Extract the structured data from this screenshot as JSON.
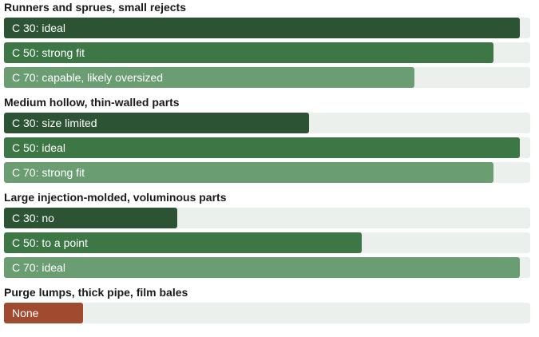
{
  "chart_data": {
    "type": "bar",
    "orientation": "horizontal",
    "scale_max": 100,
    "colors": {
      "track": "#ebf0ed",
      "C 30": "#2c5434",
      "C 50": "#3c7745",
      "C 70": "#6a9e72",
      "none": "#a04a30",
      "title": "#1a1a1a",
      "label": "#ffffff"
    },
    "groups": [
      {
        "title": "Runners and sprues, small rejects",
        "bars": [
          {
            "series": "C 30",
            "label": "C 30: ideal",
            "value": 98
          },
          {
            "series": "C 50",
            "label": "C 50: strong fit",
            "value": 93
          },
          {
            "series": "C 70",
            "label": "C 70: capable, likely oversized",
            "value": 78
          }
        ]
      },
      {
        "title": "Medium hollow, thin-walled parts",
        "bars": [
          {
            "series": "C 30",
            "label": "C 30: size limited",
            "value": 58
          },
          {
            "series": "C 50",
            "label": "C 50: ideal",
            "value": 98
          },
          {
            "series": "C 70",
            "label": "C 70: strong fit",
            "value": 93
          }
        ]
      },
      {
        "title": "Large injection-molded, voluminous parts",
        "bars": [
          {
            "series": "C 30",
            "label": "C 30: no",
            "value": 33
          },
          {
            "series": "C 50",
            "label": "C 50: to a point",
            "value": 68
          },
          {
            "series": "C 70",
            "label": "C 70: ideal",
            "value": 98
          }
        ]
      },
      {
        "title": "Purge lumps, thick pipe, film bales",
        "bars": [
          {
            "series": "none",
            "label": "None",
            "value": 15
          }
        ]
      }
    ]
  }
}
